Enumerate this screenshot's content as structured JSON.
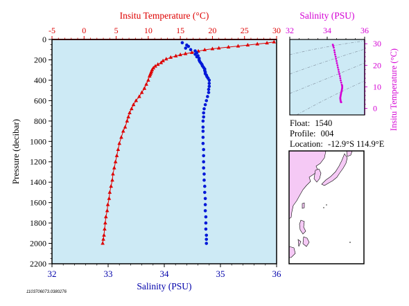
{
  "colors": {
    "plot_bg": "#cdeaf5",
    "temperature": "#dd0000",
    "salinity_main": "#0018d8",
    "salinity_inset": "#d400d4",
    "land": "#f5c9f5",
    "map_sea": "#ffffff"
  },
  "info": {
    "float_label": "Float:",
    "float_value": "1540",
    "profile_label": "Profile:",
    "profile_value": "004",
    "location_label": "Location:",
    "location_value": "-12.9°S  114.9°E"
  },
  "footer_code": "1103706073.0380276",
  "chart_data": [
    {
      "id": "main-profile",
      "type": "scatter",
      "title": "",
      "ylabel": "Pressure (decibar)",
      "ylim": [
        0,
        2200
      ],
      "y_inverted": true,
      "yticks": [
        "0",
        "200",
        "400",
        "600",
        "800",
        "1000",
        "1200",
        "1400",
        "1600",
        "1800",
        "2000",
        "2200"
      ],
      "x_bottom": {
        "label": "Salinity (PSU)",
        "lim": [
          32,
          36
        ],
        "ticks": [
          "32",
          "33",
          "34",
          "35",
          "36"
        ]
      },
      "x_top": {
        "label": "Insitu Temperature (°C)",
        "lim": [
          -5,
          30
        ],
        "ticks": [
          "-5",
          "0",
          "5",
          "10",
          "15",
          "20",
          "25",
          "30"
        ]
      },
      "grid": false,
      "series": [
        {
          "name": "temperature",
          "axis": "top",
          "marker": "triangle",
          "points": [
            [
              29.6,
              25
            ],
            [
              28.5,
              35
            ],
            [
              27.0,
              45
            ],
            [
              25.5,
              55
            ],
            [
              24.0,
              65
            ],
            [
              22.5,
              75
            ],
            [
              21.0,
              85
            ],
            [
              20.0,
              92
            ],
            [
              18.8,
              102
            ],
            [
              17.8,
              115
            ],
            [
              16.8,
              128
            ],
            [
              15.8,
              140
            ],
            [
              15.0,
              150
            ],
            [
              14.3,
              162
            ],
            [
              13.5,
              176
            ],
            [
              12.8,
              192
            ],
            [
              12.3,
              210
            ],
            [
              12.0,
              228
            ],
            [
              11.5,
              245
            ],
            [
              11.1,
              262
            ],
            [
              10.8,
              280
            ],
            [
              10.6,
              298
            ],
            [
              10.5,
              315
            ],
            [
              10.4,
              330
            ],
            [
              10.3,
              345
            ],
            [
              10.2,
              360
            ],
            [
              10.0,
              400
            ],
            [
              9.7,
              440
            ],
            [
              9.4,
              480
            ],
            [
              9.0,
              520
            ],
            [
              8.6,
              560
            ],
            [
              8.1,
              600
            ],
            [
              7.7,
              640
            ],
            [
              7.4,
              680
            ],
            [
              7.1,
              720
            ],
            [
              6.9,
              760
            ],
            [
              6.7,
              800
            ],
            [
              6.4,
              860
            ],
            [
              6.1,
              900
            ],
            [
              5.8,
              960
            ],
            [
              5.5,
              1020
            ],
            [
              5.3,
              1080
            ],
            [
              5.1,
              1140
            ],
            [
              4.9,
              1200
            ],
            [
              4.7,
              1260
            ],
            [
              4.5,
              1320
            ],
            [
              4.4,
              1380
            ],
            [
              4.2,
              1440
            ],
            [
              4.0,
              1500
            ],
            [
              3.9,
              1560
            ],
            [
              3.7,
              1620
            ],
            [
              3.6,
              1680
            ],
            [
              3.4,
              1740
            ],
            [
              3.3,
              1800
            ],
            [
              3.2,
              1860
            ],
            [
              3.1,
              1920
            ],
            [
              3.0,
              1960
            ],
            [
              2.9,
              2000
            ]
          ]
        },
        {
          "name": "salinity",
          "axis": "bottom",
          "marker": "circle",
          "points": [
            [
              34.32,
              32
            ],
            [
              34.4,
              55
            ],
            [
              34.43,
              68
            ],
            [
              34.38,
              85
            ],
            [
              34.47,
              100
            ],
            [
              34.55,
              112
            ],
            [
              34.58,
              130
            ],
            [
              34.55,
              145
            ],
            [
              34.6,
              160
            ],
            [
              34.58,
              170
            ],
            [
              34.62,
              185
            ],
            [
              34.62,
              200
            ],
            [
              34.63,
              215
            ],
            [
              34.65,
              230
            ],
            [
              34.67,
              245
            ],
            [
              34.68,
              260
            ],
            [
              34.7,
              275
            ],
            [
              34.72,
              290
            ],
            [
              34.72,
              305
            ],
            [
              34.73,
              320
            ],
            [
              34.73,
              335
            ],
            [
              34.75,
              350
            ],
            [
              34.76,
              365
            ],
            [
              34.78,
              380
            ],
            [
              34.8,
              400
            ],
            [
              34.8,
              430
            ],
            [
              34.8,
              460
            ],
            [
              34.79,
              490
            ],
            [
              34.79,
              520
            ],
            [
              34.77,
              560
            ],
            [
              34.75,
              600
            ],
            [
              34.73,
              640
            ],
            [
              34.71,
              680
            ],
            [
              34.7,
              720
            ],
            [
              34.7,
              760
            ],
            [
              34.69,
              800
            ],
            [
              34.69,
              860
            ],
            [
              34.69,
              900
            ],
            [
              34.69,
              960
            ],
            [
              34.69,
              1020
            ],
            [
              34.7,
              1080
            ],
            [
              34.7,
              1140
            ],
            [
              34.7,
              1200
            ],
            [
              34.7,
              1260
            ],
            [
              34.71,
              1320
            ],
            [
              34.71,
              1380
            ],
            [
              34.72,
              1440
            ],
            [
              34.72,
              1500
            ],
            [
              34.73,
              1560
            ],
            [
              34.73,
              1620
            ],
            [
              34.73,
              1680
            ],
            [
              34.74,
              1740
            ],
            [
              34.74,
              1800
            ],
            [
              34.74,
              1860
            ],
            [
              34.75,
              1920
            ],
            [
              34.75,
              1960
            ],
            [
              34.75,
              2000
            ]
          ]
        }
      ]
    },
    {
      "id": "ts-inset",
      "type": "scatter",
      "title": "",
      "x_top": {
        "label": "Salinity (PSU)",
        "lim": [
          32,
          36
        ],
        "ticks": [
          "32",
          "34",
          "36"
        ]
      },
      "y_right": {
        "label": "Insitu Temperature (°C)",
        "lim": [
          -3,
          32
        ],
        "ticks": [
          "0",
          "10",
          "20",
          "30"
        ]
      },
      "grid": false,
      "series": [
        {
          "name": "T-S",
          "marker": "circle",
          "points": [
            [
              34.3,
              29.6
            ],
            [
              34.32,
              29.0
            ],
            [
              34.35,
              28.2
            ],
            [
              34.38,
              27.0
            ],
            [
              34.4,
              26.0
            ],
            [
              34.42,
              25.0
            ],
            [
              34.45,
              24.0
            ],
            [
              34.47,
              23.0
            ],
            [
              34.5,
              22.0
            ],
            [
              34.52,
              21.0
            ],
            [
              34.55,
              20.0
            ],
            [
              34.57,
              19.0
            ],
            [
              34.6,
              18.0
            ],
            [
              34.62,
              17.0
            ],
            [
              34.65,
              16.0
            ],
            [
              34.68,
              15.0
            ],
            [
              34.7,
              14.0
            ],
            [
              34.72,
              13.0
            ],
            [
              34.75,
              12.0
            ],
            [
              34.78,
              11.0
            ],
            [
              34.8,
              10.5
            ],
            [
              34.8,
              10.0
            ],
            [
              34.8,
              9.5
            ],
            [
              34.79,
              9.0
            ],
            [
              34.78,
              8.5
            ],
            [
              34.77,
              8.0
            ],
            [
              34.75,
              7.5
            ],
            [
              34.74,
              7.0
            ],
            [
              34.73,
              6.5
            ],
            [
              34.72,
              6.0
            ],
            [
              34.71,
              5.5
            ],
            [
              34.7,
              5.0
            ],
            [
              34.7,
              4.5
            ],
            [
              34.71,
              4.0
            ],
            [
              34.72,
              3.5
            ],
            [
              34.73,
              3.0
            ],
            [
              34.75,
              2.9
            ]
          ]
        }
      ]
    }
  ]
}
